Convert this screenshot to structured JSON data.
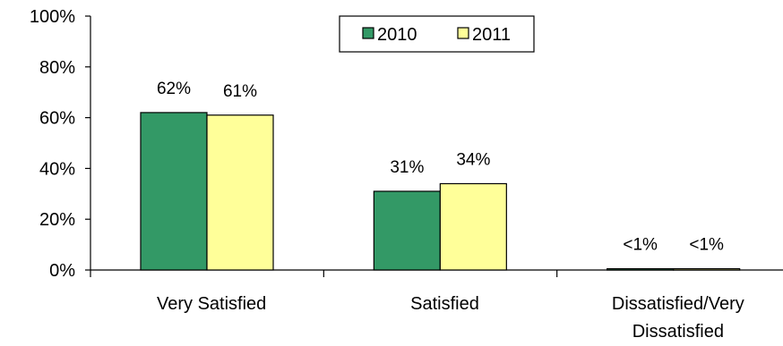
{
  "chart_data": {
    "type": "bar",
    "categories": [
      "Very Satisfied",
      "Satisfied",
      "Dissatisfied/Very Dissatisfied"
    ],
    "category_lines": [
      [
        "Very Satisfied"
      ],
      [
        "Satisfied"
      ],
      [
        "Dissatisfied/Very",
        "Dissatisfied"
      ]
    ],
    "series": [
      {
        "name": "2010",
        "values": [
          62,
          31,
          0.5
        ],
        "labels": [
          "62%",
          "31%",
          "<1%"
        ],
        "color": "#339966"
      },
      {
        "name": "2011",
        "values": [
          61,
          34,
          0.5
        ],
        "labels": [
          "61%",
          "34%",
          "<1%"
        ],
        "color": "#FFFF99"
      }
    ],
    "ylim": [
      0,
      100
    ],
    "yticks": [
      0,
      20,
      40,
      60,
      80,
      100
    ],
    "ytick_labels": [
      "0%",
      "20%",
      "40%",
      "60%",
      "80%",
      "100%"
    ],
    "title": "",
    "xlabel": "",
    "ylabel": "",
    "grid": false,
    "legend": {
      "placement": "top-center",
      "entries": [
        "2010",
        "2011"
      ]
    }
  }
}
